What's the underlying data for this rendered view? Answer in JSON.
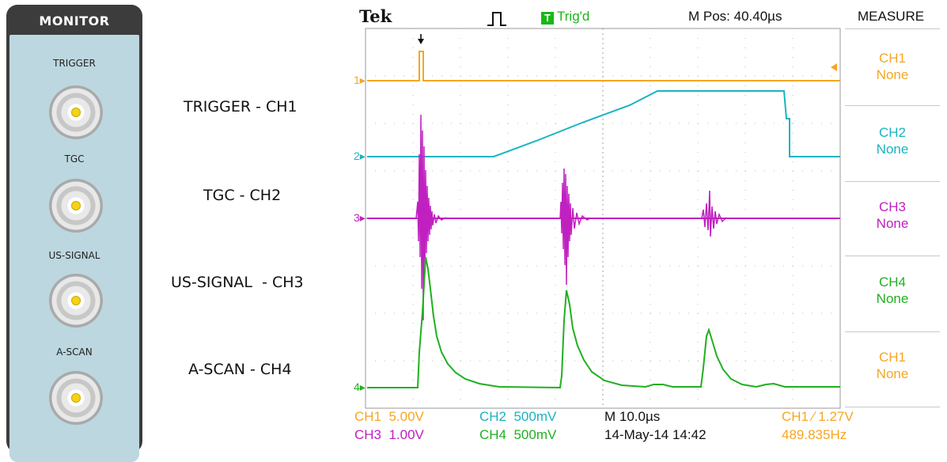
{
  "monitor_panel": {
    "title": "MONITOR",
    "connectors": [
      {
        "label": "TRIGGER"
      },
      {
        "label": "TGC"
      },
      {
        "label": "US-SIGNAL"
      },
      {
        "label": "A-SCAN"
      }
    ]
  },
  "channel_captions": [
    "TRIGGER - CH1",
    "TGC - CH2",
    "US-SIGNAL  - CH3",
    "A-SCAN - CH4"
  ],
  "scope": {
    "brand": "Tek",
    "trigger_status_badge": "T",
    "trigger_status": "Trig'd",
    "m_pos": "M Pos: 40.40µs",
    "menu_title": "MEASURE",
    "measure_slots": [
      {
        "channel": "CH1",
        "value": "None",
        "color": "#f5a623"
      },
      {
        "channel": "CH2",
        "value": "None",
        "color": "#1ab3c2"
      },
      {
        "channel": "CH3",
        "value": "None",
        "color": "#c020c0"
      },
      {
        "channel": "CH4",
        "value": "None",
        "color": "#20b020"
      },
      {
        "channel": "CH1",
        "value": "None",
        "color": "#f5a623"
      }
    ],
    "channel_markers": [
      "1",
      "2",
      "3",
      "4"
    ],
    "bottom": {
      "ch1_label": "CH1",
      "ch1_scale": "5.00V",
      "ch2_label": "CH2",
      "ch2_scale": "500mV",
      "ch3_label": "CH3",
      "ch3_scale": "1.00V",
      "ch4_label": "CH4",
      "ch4_scale": "500mV",
      "timebase": "M 10.0µs",
      "datetime": "14-May-14 14:42",
      "trigger_info": "CH1 ∕ 1.27V",
      "frequency": "489.835Hz"
    },
    "colors": {
      "ch1": "#f5a623",
      "ch2": "#1ab3c2",
      "ch3": "#c020c0",
      "ch4": "#20b020",
      "trigger": "#18b818"
    }
  }
}
